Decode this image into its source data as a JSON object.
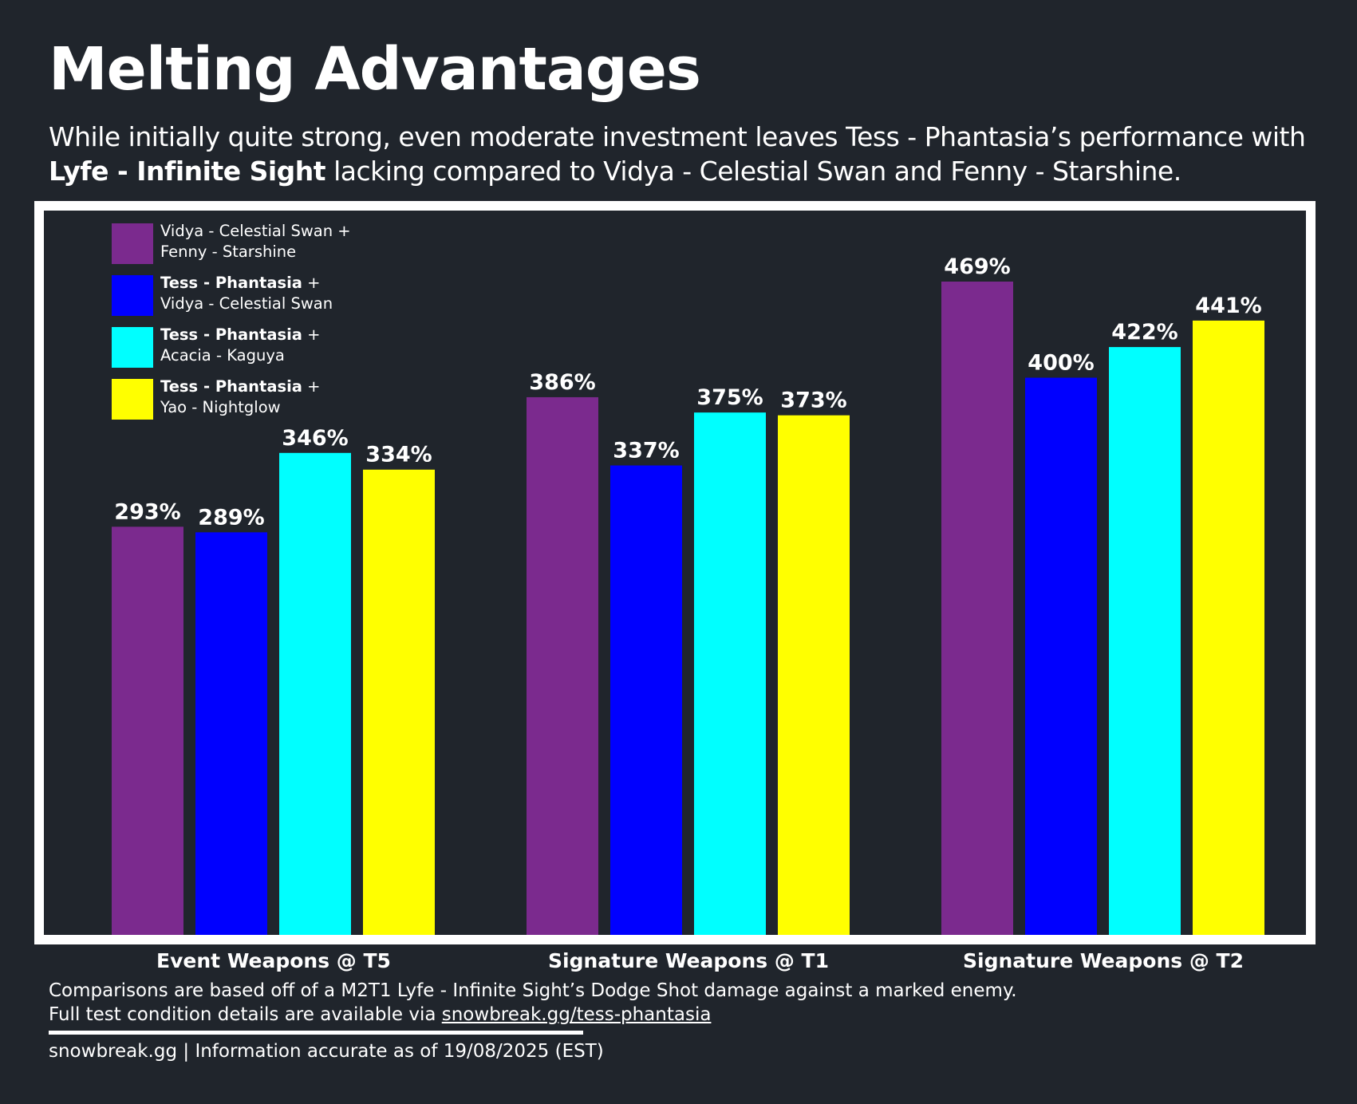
{
  "title": "Melting Advantages",
  "subtitle": {
    "line1": "While initially quite strong, even moderate investment leaves Tess - Phantasia’s performance with",
    "line2_bold": "Lyfe - Infinite Sight",
    "line2_rest": " lacking compared to Vidya - Celestial Swan and Fenny - Starshine."
  },
  "chart_data": {
    "type": "bar",
    "categories": [
      "Event Weapons @ T5",
      "Signature Weapons @ T1",
      "Signature Weapons @ T2"
    ],
    "series": [
      {
        "name": "Vidya - Celestial Swan + Fenny - Starshine",
        "color": "#7b2a8e",
        "values": [
          293,
          386,
          469
        ],
        "labels": [
          "293%",
          "386%",
          "469%"
        ]
      },
      {
        "name": "Tess - Phantasia + Vidya - Celestial Swan",
        "color": "#0000ff",
        "values": [
          289,
          337,
          400
        ],
        "labels": [
          "289%",
          "337%",
          "400%"
        ]
      },
      {
        "name": "Tess - Phantasia + Acacia - Kaguya",
        "color": "#00ffff",
        "values": [
          346,
          375,
          422
        ],
        "labels": [
          "346%",
          "375%",
          "422%"
        ]
      },
      {
        "name": "Tess - Phantasia + Yao - Nightglow",
        "color": "#ffff00",
        "values": [
          334,
          373,
          441
        ],
        "labels": [
          "334%",
          "373%",
          "441%"
        ]
      }
    ],
    "unit": "%",
    "ylim": [
      0,
      480
    ],
    "grid": false,
    "legend_position": "top-left"
  },
  "legend": [
    {
      "bold": "",
      "line1": "Vidya - Celestial Swan +",
      "line2": "Fenny - Starshine",
      "color": "#7b2a8e"
    },
    {
      "bold": "Tess - Phantasia",
      "line1": " +",
      "line2": "Vidya - Celestial Swan",
      "color": "#0000ff"
    },
    {
      "bold": "Tess - Phantasia",
      "line1": " +",
      "line2": "Acacia - Kaguya",
      "color": "#00ffff"
    },
    {
      "bold": "Tess - Phantasia",
      "line1": " +",
      "line2": "Yao - Nightglow",
      "color": "#ffff00"
    }
  ],
  "footer": {
    "note_line1": "Comparisons are based off of a M2T1 Lyfe - Infinite Sight’s Dodge Shot damage against a marked enemy.",
    "note_line2_prefix": "Full test condition details are available via ",
    "note_link": "snowbreak.gg/tess-phantasia",
    "credit": "snowbreak.gg | Information accurate as of 19/08/2025 (EST)"
  }
}
